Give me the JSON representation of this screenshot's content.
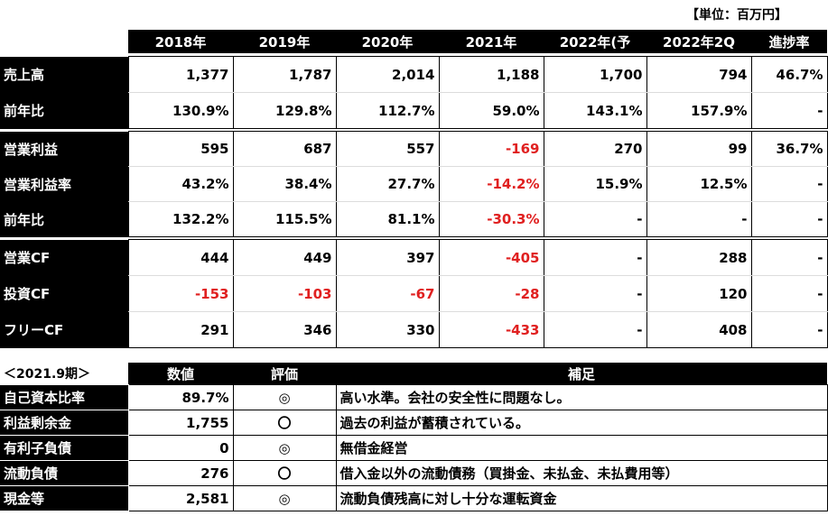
{
  "unit_label": "【単位：百万円】",
  "headers": [
    "2018年",
    "2019年",
    "2020年",
    "2021年",
    "2022年(予",
    "2022年2Q",
    "進捗率"
  ],
  "group1": [
    {
      "label": "売上高",
      "values": [
        "1,377",
        "1,787",
        "2,014",
        "1,188",
        "1,700",
        "794",
        "46.7%"
      ]
    },
    {
      "label": "前年比",
      "values": [
        "130.9%",
        "129.8%",
        "112.7%",
        "59.0%",
        "143.1%",
        "157.9%",
        "-"
      ]
    }
  ],
  "group2": [
    {
      "label": "営業利益",
      "values": [
        "595",
        "687",
        "557",
        "-169",
        "270",
        "99",
        "36.7%"
      ]
    },
    {
      "label": "営業利益率",
      "values": [
        "43.2%",
        "38.4%",
        "27.7%",
        "-14.2%",
        "15.9%",
        "12.5%",
        "-"
      ]
    },
    {
      "label": "前年比",
      "values": [
        "132.2%",
        "115.5%",
        "81.1%",
        "-30.3%",
        "-",
        "-",
        "-"
      ]
    }
  ],
  "group3": [
    {
      "label": "営業CF",
      "values": [
        "444",
        "449",
        "397",
        "-405",
        "-",
        "288",
        "-"
      ]
    },
    {
      "label": "投資CF",
      "values": [
        "-153",
        "-103",
        "-67",
        "-28",
        "-",
        "120",
        "-"
      ]
    },
    {
      "label": "フリーCF",
      "values": [
        "291",
        "346",
        "330",
        "-433",
        "-",
        "408",
        "-"
      ]
    }
  ],
  "bottom_period": "＜2021.9期＞",
  "bottom_headers": [
    "数値",
    "評価",
    "補足"
  ],
  "bottom_rows": [
    {
      "label": "自己資本比率",
      "value": "89.7%",
      "eval": "◎",
      "note": "高い水準。会社の安全性に問題なし。"
    },
    {
      "label": "利益剰余金",
      "value": "1,755",
      "eval": "〇",
      "note": "過去の利益が蓄積されている。"
    },
    {
      "label": "有利子負債",
      "value": "0",
      "eval": "◎",
      "note": "無借金経営"
    },
    {
      "label": "流動負債",
      "value": "276",
      "eval": "〇",
      "note": "借入金以外の流動債務（買掛金、未払金、未払費用等）"
    },
    {
      "label": "現金等",
      "value": "2,581",
      "eval": "◎",
      "note": "流動負債残高に対し十分な運転資金"
    }
  ],
  "negative_color": "#e02020"
}
